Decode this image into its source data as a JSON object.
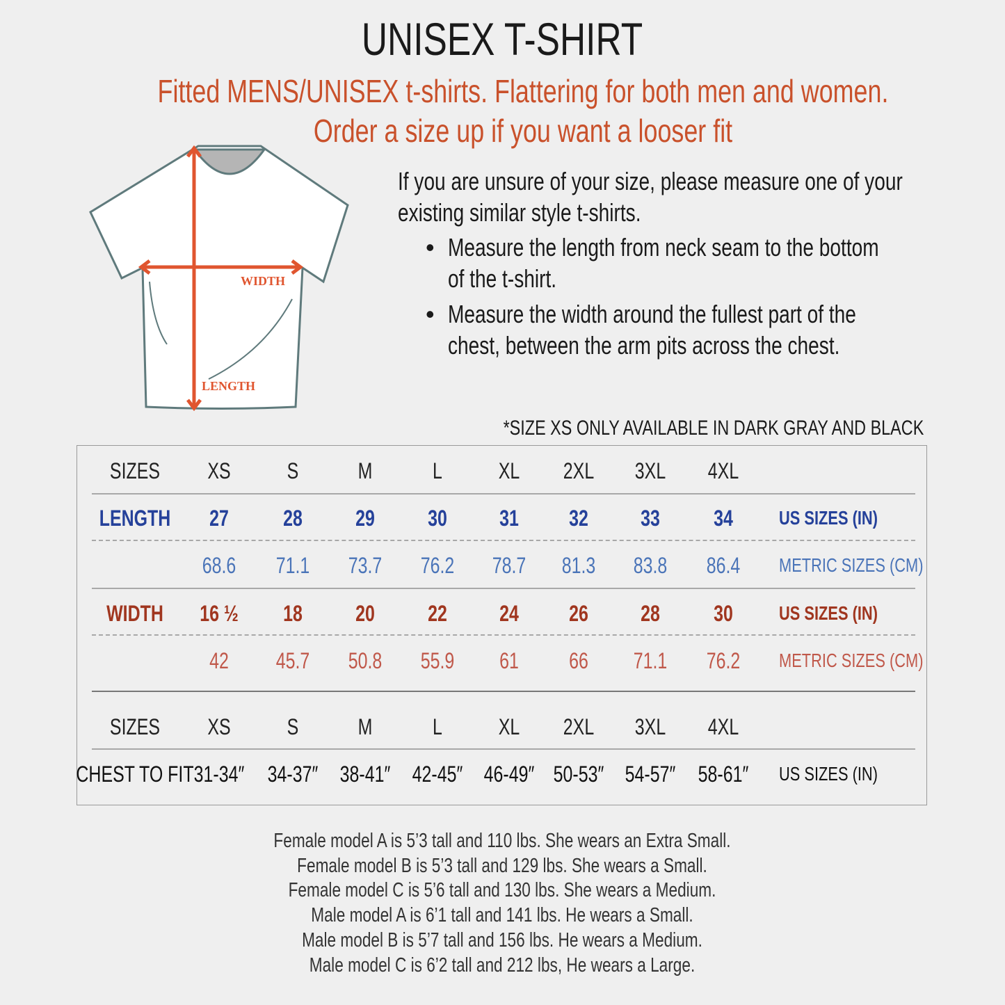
{
  "title": "UNISEX T-SHIRT",
  "subtitle": [
    "Fitted MENS/UNISEX t-shirts. Flattering for both men and women.",
    "Order a size up if you want a looser fit"
  ],
  "instructions": {
    "intro": [
      "If you are unsure of your size, please measure one of your",
      "existing similar style t-shirts."
    ],
    "bullets": [
      [
        "Measure the length from neck seam to the bottom",
        "of the t-shirt."
      ],
      [
        "Measure the width around the fullest part of the",
        "chest, between the arm pits across the chest."
      ]
    ]
  },
  "diagram": {
    "width_label": "WIDTH",
    "length_label": "LENGTH",
    "arrow_color": "#e0552f"
  },
  "note": "*SIZE XS ONLY AVAILABLE IN DARK GRAY AND BLACK",
  "colors": {
    "accent": "#c9512b",
    "length_us": "#25419a",
    "length_metric": "#4a74b8",
    "width_us": "#a0361f",
    "width_metric": "#c0584a"
  },
  "table": {
    "sizes_label": "SIZES",
    "sizes": [
      "XS",
      "S",
      "M",
      "L",
      "XL",
      "2XL",
      "3XL",
      "4XL"
    ],
    "length": {
      "label": "LENGTH",
      "us": [
        "27",
        "28",
        "29",
        "30",
        "31",
        "32",
        "33",
        "34"
      ],
      "us_unit": "US SIZES (IN)",
      "metric": [
        "68.6",
        "71.1",
        "73.7",
        "76.2",
        "78.7",
        "81.3",
        "83.8",
        "86.4"
      ],
      "metric_unit": "METRIC SIZES (CM)"
    },
    "width": {
      "label": "WIDTH",
      "us": [
        "16 ½",
        "18",
        "20",
        "22",
        "24",
        "26",
        "28",
        "30"
      ],
      "us_unit": "US SIZES (IN)",
      "metric": [
        "42",
        "45.7",
        "50.8",
        "55.9",
        "61",
        "66",
        "71.1",
        "76.2"
      ],
      "metric_unit": "METRIC SIZES (CM)"
    },
    "chest": {
      "label": "CHEST TO FIT",
      "values": [
        "31-34″",
        "34-37″",
        "38-41″",
        "42-45″",
        "46-49″",
        "50-53″",
        "54-57″",
        "58-61″"
      ],
      "unit": "US SIZES (IN)"
    }
  },
  "models": [
    "Female model A is 5’3 tall and 110 lbs. She wears an Extra Small.",
    "Female model B is 5’3 tall and 129 lbs. She wears a Small.",
    "Female model C is 5’6 tall and 130 lbs. She wears a Medium.",
    "Male model A is 6’1 tall and 141 lbs. He wears a Small.",
    "Male model B is 5’7 tall and 156 lbs. He wears a Medium.",
    "Male model C is 6’2 tall and 212 lbs, He wears a Large."
  ]
}
